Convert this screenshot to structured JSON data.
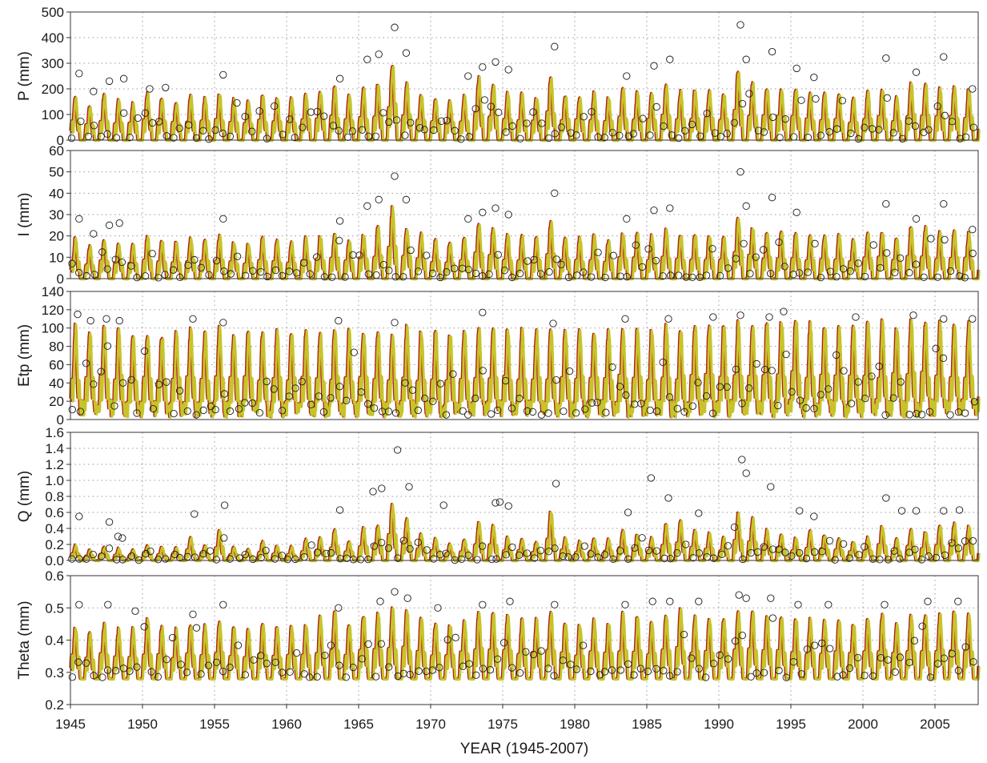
{
  "chart_data": [
    {
      "type": "line",
      "ylabel": "P (mm)",
      "ylim": [
        0,
        500
      ],
      "yticks": [
        "0",
        "100",
        "200",
        "300",
        "400",
        "500"
      ],
      "xlim": [
        1945,
        2008
      ],
      "grid": "dotted vertical at 5-year ticks",
      "series": [
        {
          "type": "scatter",
          "marker": "open-circle",
          "x": [
            1945.6,
            1946.6,
            1947.7,
            1948.7,
            1950.5,
            1951.6,
            1955.6,
            1963.7,
            1965.6,
            1966.4,
            1967.5,
            1968.3,
            1972.6,
            1973.6,
            1974.5,
            1975.4,
            1978.6,
            1983.6,
            1985.5,
            1986.6,
            1991.5,
            1991.9,
            1993.7,
            1995.4,
            1996.6,
            2001.6,
            2003.7,
            2005.6,
            2007.6
          ],
          "y": [
            260,
            190,
            230,
            240,
            200,
            205,
            255,
            240,
            315,
            335,
            440,
            340,
            250,
            285,
            305,
            275,
            365,
            250,
            290,
            315,
            450,
            315,
            345,
            280,
            245,
            320,
            265,
            325,
            200
          ]
        }
      ],
      "simulated_peaks_y": [
        175,
        140,
        185,
        160,
        150,
        195,
        170,
        160,
        180,
        175,
        190,
        165,
        160,
        180,
        175,
        170,
        185,
        200,
        215,
        180,
        210,
        230,
        320,
        230,
        195,
        170,
        165,
        180,
        255,
        230,
        195,
        190,
        180,
        260,
        190,
        180,
        190,
        175,
        210,
        195,
        190,
        225,
        200,
        205,
        200,
        195,
        290,
        230,
        220,
        215,
        210,
        190,
        195,
        190,
        170,
        200,
        210,
        180,
        235,
        230,
        210,
        215,
        210
      ]
    },
    {
      "type": "line",
      "ylabel": "I (mm)",
      "ylim": [
        0,
        60
      ],
      "yticks": [
        "0",
        "10",
        "20",
        "30",
        "40",
        "50",
        "60"
      ],
      "xlim": [
        1945,
        2008
      ],
      "series": [
        {
          "type": "scatter",
          "marker": "open-circle",
          "x": [
            1945.6,
            1946.6,
            1947.7,
            1948.4,
            1955.6,
            1963.7,
            1965.6,
            1966.4,
            1967.5,
            1968.3,
            1972.6,
            1973.6,
            1974.5,
            1975.4,
            1978.6,
            1983.6,
            1985.5,
            1986.6,
            1991.5,
            1991.9,
            1993.7,
            1995.4,
            2001.6,
            2003.7,
            2005.6,
            2007.6
          ],
          "y": [
            28,
            21,
            25,
            26,
            28,
            27,
            34,
            37,
            48,
            37,
            28,
            31,
            33,
            30,
            40,
            28,
            32,
            33,
            50,
            34,
            38,
            31,
            35,
            28,
            35,
            23
          ]
        }
      ],
      "simulated_peaks_y": [
        20,
        16,
        19,
        17,
        17,
        21,
        19,
        18,
        20,
        19,
        21,
        18,
        17,
        20,
        19,
        18,
        20,
        21,
        22,
        19,
        22,
        25,
        34,
        25,
        22,
        19,
        18,
        20,
        27,
        25,
        22,
        21,
        20,
        28,
        21,
        20,
        21,
        19,
        23,
        22,
        21,
        24,
        22,
        22,
        22,
        21,
        31,
        25,
        23,
        23,
        22,
        21,
        21,
        21,
        19,
        22,
        23,
        20,
        25,
        25,
        23,
        23,
        22
      ]
    },
    {
      "type": "line",
      "ylabel": "Etp (mm)",
      "ylim": [
        0,
        140
      ],
      "yticks": [
        "0",
        "20",
        "40",
        "60",
        "80",
        "100",
        "120",
        "140"
      ],
      "xlim": [
        1945,
        2008
      ],
      "series": [
        {
          "type": "scatter",
          "marker": "open-circle",
          "x": [
            1945.5,
            1946.4,
            1947.5,
            1948.4,
            1953.5,
            1955.6,
            1963.6,
            1967.5,
            1973.6,
            1978.5,
            1983.5,
            1986.5,
            1989.6,
            1991.5,
            1993.5,
            1994.5,
            1999.5,
            2003.5,
            2005.6,
            2007.6
          ],
          "y": [
            115,
            108,
            110,
            108,
            110,
            106,
            108,
            106,
            117,
            105,
            110,
            110,
            112,
            114,
            112,
            118,
            112,
            114,
            110,
            110
          ]
        }
      ],
      "simulated_peaks_y": [
        105,
        100,
        107,
        105,
        95,
        100,
        98,
        100,
        102,
        100,
        105,
        100,
        102,
        100,
        100,
        102,
        100,
        100,
        104,
        100,
        103,
        102,
        100,
        104,
        102,
        100,
        100,
        102,
        104,
        103,
        103,
        102,
        100,
        103,
        104,
        105,
        104,
        103,
        105,
        106,
        104,
        106,
        105,
        106,
        108,
        107,
        110,
        108,
        110,
        112,
        117,
        110,
        108,
        106,
        110,
        112,
        110,
        110,
        112,
        112,
        110,
        110,
        110
      ]
    },
    {
      "type": "line",
      "ylabel": "Q (mm)",
      "ylim": [
        0,
        1.6
      ],
      "yticks": [
        "0.0",
        "0.2",
        "0.4",
        "0.6",
        "0.8",
        "1.0",
        "1.2",
        "1.4",
        "1.6"
      ],
      "xlim": [
        1945,
        2008
      ],
      "series": [
        {
          "type": "scatter",
          "marker": "open-circle",
          "x": [
            1945.6,
            1947.7,
            1948.3,
            1948.6,
            1953.6,
            1955.7,
            1963.7,
            1966.0,
            1966.6,
            1967.7,
            1968.5,
            1970.9,
            1974.5,
            1974.8,
            1975.4,
            1978.7,
            1983.7,
            1985.3,
            1986.5,
            1988.6,
            1991.6,
            1991.9,
            1993.6,
            1995.6,
            1996.6,
            2001.6,
            2002.7,
            2003.7,
            2005.6,
            2006.7
          ],
          "y": [
            0.55,
            0.48,
            0.3,
            0.28,
            0.58,
            0.69,
            0.63,
            0.86,
            0.9,
            1.38,
            0.92,
            0.69,
            0.72,
            0.73,
            0.68,
            0.96,
            0.6,
            1.03,
            0.78,
            0.59,
            1.26,
            1.09,
            0.92,
            0.62,
            0.55,
            0.78,
            0.62,
            0.62,
            0.62,
            0.63
          ]
        }
      ],
      "simulated_peaks_y": [
        0.2,
        0.14,
        0.18,
        0.16,
        0.14,
        0.2,
        0.18,
        0.17,
        0.3,
        0.2,
        0.4,
        0.18,
        0.15,
        0.25,
        0.2,
        0.18,
        0.28,
        0.3,
        0.4,
        0.25,
        0.42,
        0.45,
        0.74,
        0.55,
        0.35,
        0.3,
        0.22,
        0.28,
        0.5,
        0.45,
        0.3,
        0.28,
        0.25,
        0.65,
        0.3,
        0.25,
        0.3,
        0.28,
        0.4,
        0.35,
        0.3,
        0.48,
        0.52,
        0.4,
        0.35,
        0.3,
        0.6,
        0.55,
        0.4,
        0.35,
        0.3,
        0.38,
        0.35,
        0.3,
        0.25,
        0.3,
        0.45,
        0.28,
        0.4,
        0.38,
        0.45,
        0.48,
        0.45
      ]
    },
    {
      "type": "line",
      "ylabel": "Theta (mm)",
      "ylim": [
        0.2,
        0.6
      ],
      "yticks": [
        "0.2",
        "0.3",
        "0.4",
        "0.5",
        "0.6"
      ],
      "xlim": [
        1945,
        2008
      ],
      "series": [
        {
          "type": "scatter",
          "marker": "open-circle",
          "x": [
            1945.6,
            1947.6,
            1949.5,
            1953.5,
            1955.6,
            1963.6,
            1966.5,
            1967.5,
            1968.4,
            1970.5,
            1973.6,
            1975.5,
            1978.6,
            1983.5,
            1985.4,
            1986.6,
            1988.6,
            1991.4,
            1991.9,
            1993.6,
            1995.5,
            1997.6,
            2001.5,
            2004.5,
            2006.6
          ],
          "y": [
            0.51,
            0.51,
            0.49,
            0.48,
            0.51,
            0.5,
            0.52,
            0.55,
            0.53,
            0.5,
            0.51,
            0.52,
            0.51,
            0.51,
            0.52,
            0.52,
            0.52,
            0.54,
            0.53,
            0.53,
            0.51,
            0.51,
            0.51,
            0.52,
            0.52
          ]
        }
      ],
      "simulated_peaks_y": [
        0.45,
        0.43,
        0.46,
        0.44,
        0.44,
        0.47,
        0.45,
        0.44,
        0.46,
        0.45,
        0.47,
        0.45,
        0.44,
        0.46,
        0.45,
        0.45,
        0.46,
        0.48,
        0.5,
        0.46,
        0.49,
        0.49,
        0.51,
        0.5,
        0.48,
        0.46,
        0.46,
        0.47,
        0.5,
        0.49,
        0.48,
        0.47,
        0.47,
        0.5,
        0.47,
        0.46,
        0.47,
        0.46,
        0.49,
        0.48,
        0.47,
        0.49,
        0.5,
        0.48,
        0.48,
        0.47,
        0.5,
        0.5,
        0.49,
        0.48,
        0.48,
        0.47,
        0.47,
        0.47,
        0.46,
        0.48,
        0.49,
        0.46,
        0.49,
        0.49,
        0.49,
        0.5,
        0.49
      ]
    }
  ],
  "x_axis": {
    "xlabel": "YEAR (1945-2007)",
    "ticks": [
      "1945",
      "1950",
      "1955",
      "1960",
      "1965",
      "1970",
      "1975",
      "1980",
      "1985",
      "1990",
      "1995",
      "2000",
      "2005"
    ],
    "tick_values": [
      1945,
      1950,
      1955,
      1960,
      1965,
      1970,
      1975,
      1980,
      1985,
      1990,
      1995,
      2000,
      2005
    ]
  },
  "colors": {
    "simulated_light": "#c6c42a",
    "simulated_dark": "#b01e14",
    "observed_marker": "#1a1a1a",
    "grid": "#9a9a9a",
    "axis": "#333333"
  }
}
